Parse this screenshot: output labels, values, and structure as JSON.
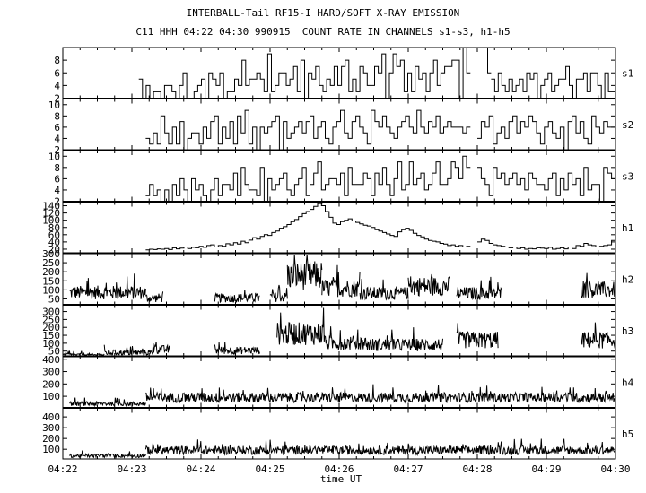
{
  "header": {
    "title": "INTERBALL-Tail RF15-I HARD/SOFT X-RAY EMISSION",
    "subtitle": "C11 HHH 04:22 04:30 990915  COUNT RATE IN CHANNELS s1-s3, h1-h5"
  },
  "chart_data": {
    "type": "line",
    "title": "INTERBALL-Tail RF15-I HARD/SOFT X-RAY EMISSION",
    "subtitle": "C11 HHH 04:22 04:30 990915  COUNT RATE IN CHANNELS s1-s3, h1-h5",
    "xlabel": "time UT",
    "x_ticks": [
      "04:22",
      "04:23",
      "04:24",
      "04:25",
      "04:26",
      "04:27",
      "04:28",
      "04:29",
      "04:30"
    ],
    "xlim": [
      "04:22",
      "04:30"
    ],
    "panels": [
      {
        "name": "s1",
        "style": "step",
        "ylim": [
          2,
          10
        ],
        "yticks": [
          2,
          4,
          6,
          8
        ],
        "segments": [
          {
            "start": "04:23.0",
            "end": "04:23.1",
            "values": [
              2
            ]
          },
          {
            "start": "04:23.1",
            "end": "04:27.9",
            "values": [
              5,
              2,
              4,
              2,
              3,
              3,
              2,
              4,
              4,
              3,
              2,
              4,
              6,
              2,
              2,
              3,
              4,
              5,
              2,
              6,
              5,
              4,
              6,
              2,
              3,
              3,
              5,
              4,
              8,
              4,
              5,
              5,
              6,
              5,
              3,
              9,
              3,
              4,
              6,
              6,
              4,
              5,
              7,
              3,
              8,
              2,
              6,
              5,
              7,
              4,
              3,
              5,
              4,
              7,
              4,
              7,
              8,
              3,
              5,
              3,
              7,
              6,
              4,
              4,
              7,
              6,
              9,
              2,
              6,
              9,
              7,
              8,
              3,
              6,
              3,
              7,
              5,
              6,
              3,
              6,
              8,
              4,
              6,
              7,
              7,
              8,
              8,
              2,
              10,
              6
            ]
          },
          {
            "start": "04:28.1",
            "end": "04:28.2",
            "values": [
              10,
              6
            ]
          },
          {
            "start": "04:28.2",
            "end": "04:30",
            "values": [
              5,
              3,
              6,
              4,
              3,
              5,
              3,
              4,
              5,
              3,
              6,
              5,
              6,
              2,
              4,
              5,
              6,
              3,
              4,
              5,
              5,
              7,
              4,
              2,
              5,
              5,
              6,
              3,
              6,
              6,
              4,
              2,
              6,
              3,
              3
            ]
          }
        ]
      },
      {
        "name": "s2",
        "style": "step",
        "ylim": [
          2,
          11
        ],
        "yticks": [
          2,
          4,
          6,
          8,
          10
        ],
        "segments": [
          {
            "start": "04:23.2",
            "end": "04:27.9",
            "values": [
              4,
              3,
              5,
              3,
              8,
              5,
              3,
              6,
              3,
              7,
              2,
              4,
              5,
              5,
              3,
              6,
              4,
              7,
              8,
              3,
              6,
              4,
              7,
              3,
              8,
              5,
              9,
              3,
              6,
              2,
              6,
              5,
              6,
              7,
              8,
              2,
              7,
              4,
              5,
              6,
              7,
              5,
              7,
              8,
              4,
              6,
              7,
              4,
              3,
              6,
              7,
              9,
              5,
              4,
              7,
              8,
              6,
              5,
              3,
              9,
              7,
              6,
              8,
              6,
              5,
              4,
              6,
              7,
              8,
              6,
              5,
              9,
              6,
              5,
              7,
              6,
              8,
              5,
              6,
              7,
              6,
              6,
              6,
              5,
              6
            ]
          },
          {
            "start": "04:28.0",
            "end": "04:30",
            "values": [
              4,
              7,
              6,
              8,
              3,
              5,
              6,
              4,
              7,
              8,
              5,
              7,
              6,
              8,
              7,
              5,
              3,
              6,
              7,
              5,
              4,
              6,
              2,
              7,
              8,
              5,
              7,
              4,
              3,
              8,
              6,
              5,
              7,
              6,
              6
            ]
          }
        ]
      },
      {
        "name": "s3",
        "style": "step",
        "ylim": [
          2,
          11
        ],
        "yticks": [
          2,
          4,
          6,
          8,
          10
        ],
        "segments": [
          {
            "start": "04:23.2",
            "end": "04:27.9",
            "values": [
              3,
              5,
              3,
              4,
              2,
              4,
              2,
              5,
              3,
              6,
              4,
              2,
              6,
              4,
              5,
              3,
              2,
              4,
              6,
              3,
              5,
              5,
              4,
              7,
              3,
              8,
              5,
              4,
              4,
              3,
              8,
              2,
              6,
              4,
              5,
              6,
              7,
              4,
              3,
              5,
              6,
              8,
              3,
              5,
              7,
              9,
              4,
              5,
              6,
              6,
              5,
              7,
              3,
              8,
              5,
              5,
              5,
              7,
              6,
              3,
              7,
              5,
              8,
              5,
              3,
              6,
              9,
              4,
              5,
              9,
              5,
              6,
              7,
              4,
              5,
              7,
              9,
              5,
              5,
              6,
              9,
              8,
              6,
              10,
              8
            ]
          },
          {
            "start": "04:28.0",
            "end": "04:30",
            "values": [
              8,
              6,
              5,
              3,
              8,
              6,
              7,
              5,
              6,
              7,
              5,
              6,
              4,
              7,
              6,
              5,
              5,
              4,
              6,
              7,
              3,
              6,
              4,
              7,
              5,
              6,
              3,
              8,
              4,
              5,
              5,
              2,
              8,
              7,
              6
            ]
          }
        ]
      },
      {
        "name": "h1",
        "style": "step",
        "ylim": [
          10,
          150
        ],
        "yticks": [
          20,
          40,
          60,
          80,
          100,
          120,
          140
        ],
        "segments": [
          {
            "start": "04:23.2",
            "end": "04:27.9",
            "values": [
              18,
              20,
              19,
              21,
              20,
              22,
              19,
              24,
              21,
              23,
              26,
              22,
              25,
              24,
              28,
              25,
              30,
              32,
              26,
              30,
              28,
              35,
              32,
              38,
              34,
              42,
              38,
              45,
              52,
              48,
              55,
              60,
              58,
              66,
              70,
              78,
              82,
              88,
              96,
              102,
              110,
              118,
              124,
              130,
              138,
              146,
              140,
              124,
              108,
              92,
              88,
              96,
              100,
              104,
              98,
              94,
              90,
              86,
              84,
              80,
              74,
              70,
              66,
              62,
              58,
              55,
              68,
              74,
              78,
              72,
              64,
              58,
              54,
              48,
              44,
              42,
              40,
              36,
              34,
              30,
              32,
              28,
              30,
              26,
              28
            ]
          },
          {
            "start": "04:28.0",
            "end": "04:30",
            "values": [
              40,
              48,
              44,
              36,
              32,
              30,
              28,
              26,
              24,
              26,
              22,
              24,
              20,
              22,
              21,
              24,
              23,
              22,
              25,
              20,
              22,
              24,
              21,
              26,
              22,
              30,
              28,
              36,
              32,
              30,
              26,
              28,
              30,
              32,
              44
            ]
          }
        ]
      },
      {
        "name": "h2",
        "style": "noise",
        "ylim": [
          20,
          300
        ],
        "yticks": [
          50,
          100,
          150,
          200,
          250,
          300
        ],
        "segments": [
          {
            "start": "04:22.1",
            "end": "04:23.2",
            "base": 85
          },
          {
            "start": "04:23.2",
            "end": "04:23.45",
            "base": 55
          },
          {
            "start": "04:24.2",
            "end": "04:24.85",
            "base": 55
          },
          {
            "start": "04:25.0",
            "end": "04:25.25",
            "base": 60
          },
          {
            "start": "04:25.25",
            "end": "04:25.75",
            "base": 180
          },
          {
            "start": "04:25.75",
            "end": "04:26.3",
            "base": 110
          },
          {
            "start": "04:26.3",
            "end": "04:27.0",
            "base": 80
          },
          {
            "start": "04:27.0",
            "end": "04:27.6",
            "base": 120
          },
          {
            "start": "04:27.7",
            "end": "04:28.35",
            "base": 80
          },
          {
            "start": "04:29.5",
            "end": "04:30",
            "base": 100
          }
        ]
      },
      {
        "name": "h3",
        "style": "noise",
        "ylim": [
          20,
          340
        ],
        "yticks": [
          50,
          100,
          150,
          200,
          250,
          300
        ],
        "segments": [
          {
            "start": "04:22",
            "end": "04:22.6",
            "base": 25
          },
          {
            "start": "04:22.6",
            "end": "04:23.3",
            "base": 40
          },
          {
            "start": "04:23.3",
            "end": "04:23.55",
            "base": 60
          },
          {
            "start": "04:24.2",
            "end": "04:24.85",
            "base": 55
          },
          {
            "start": "04:25.1",
            "end": "04:25.8",
            "base": 160
          },
          {
            "start": "04:25.8",
            "end": "04:26.4",
            "base": 100
          },
          {
            "start": "04:26.4",
            "end": "04:27.5",
            "base": 90
          },
          {
            "start": "04:27.7",
            "end": "04:28.3",
            "base": 120
          },
          {
            "start": "04:29.5",
            "end": "04:30",
            "base": 120
          }
        ]
      },
      {
        "name": "h4",
        "style": "noise",
        "ylim": [
          10,
          420
        ],
        "yticks": [
          100,
          200,
          300,
          400
        ],
        "segments": [
          {
            "start": "04:22.1",
            "end": "04:23.2",
            "base": 40
          },
          {
            "start": "04:23.2",
            "end": "04:30",
            "base": 90
          }
        ]
      },
      {
        "name": "h5",
        "style": "noise",
        "ylim": [
          10,
          480
        ],
        "yticks": [
          100,
          200,
          300,
          400
        ],
        "segments": [
          {
            "start": "04:22.1",
            "end": "04:23.2",
            "base": 40
          },
          {
            "start": "04:23.2",
            "end": "04:30",
            "base": 90
          }
        ]
      }
    ]
  }
}
